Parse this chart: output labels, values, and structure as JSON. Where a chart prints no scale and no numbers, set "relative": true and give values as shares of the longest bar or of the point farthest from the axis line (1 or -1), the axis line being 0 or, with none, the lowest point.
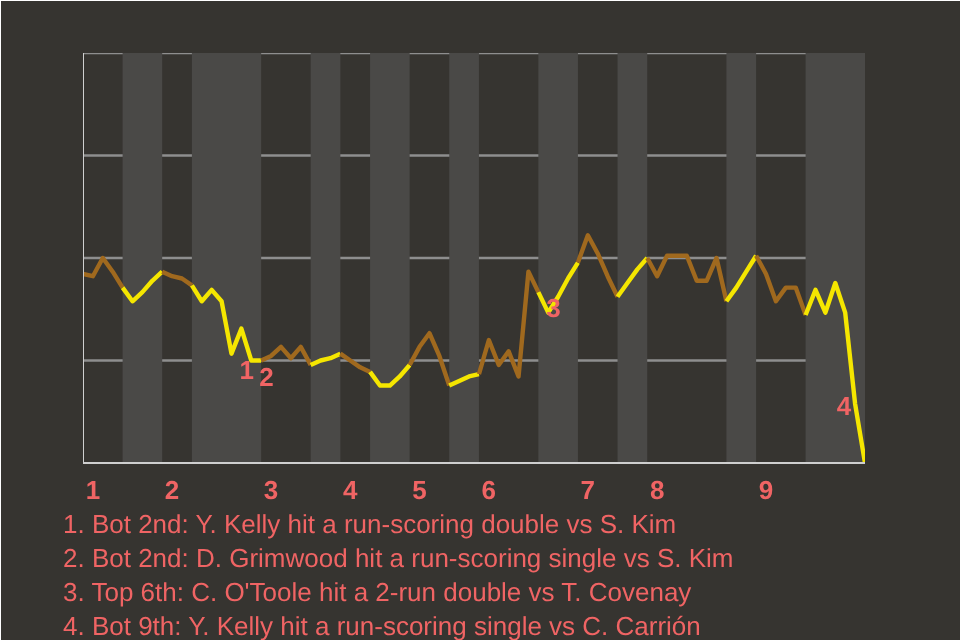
{
  "chart_data": {
    "type": "line",
    "relative": true,
    "categories": [
      null,
      "1",
      null,
      null,
      null,
      null,
      null,
      null,
      null,
      "2",
      null,
      null,
      null,
      null,
      null,
      null,
      null,
      null,
      null,
      "3",
      null,
      null,
      null,
      null,
      null,
      null,
      null,
      "4",
      null,
      null,
      null,
      null,
      null,
      null,
      "5",
      null,
      null,
      null,
      null,
      null,
      null,
      "6",
      null,
      null,
      null,
      null,
      null,
      null,
      null,
      null,
      null,
      "7",
      null,
      null,
      null,
      null,
      null,
      null,
      "8",
      null,
      null,
      null,
      null,
      null,
      null,
      null,
      null,
      null,
      null,
      "9",
      null,
      null,
      null,
      null,
      null,
      null,
      null,
      null,
      null,
      null
    ],
    "series": [
      {
        "color": "#a0691e",
        "values": [
          0.83,
          0.82,
          0.9,
          0.84,
          0.77,
          null,
          null,
          null,
          null,
          null,
          null,
          null,
          null,
          null,
          null,
          null,
          null,
          null,
          null,
          null,
          null,
          null,
          null,
          null,
          null,
          null,
          null,
          null,
          null,
          null,
          null,
          null,
          null,
          null,
          null,
          null,
          null,
          null,
          null,
          null,
          null,
          null,
          null,
          null,
          null,
          null,
          null,
          null,
          null,
          null,
          null,
          null,
          null,
          null,
          null,
          null,
          null,
          null,
          null,
          null,
          null,
          null,
          null,
          null,
          null,
          null,
          null,
          null,
          null,
          null,
          null,
          null,
          null,
          null,
          null,
          null,
          null,
          null,
          null,
          null
        ]
      },
      {
        "color": "#f5e600",
        "values": [
          null,
          null,
          null,
          null,
          0.77,
          0.71,
          0.75,
          0.8,
          0.84,
          null,
          null,
          null,
          null,
          null,
          null,
          null,
          null,
          null,
          null,
          null,
          null,
          null,
          null,
          null,
          null,
          null,
          null,
          null,
          null,
          null,
          null,
          null,
          null,
          null,
          null,
          null,
          null,
          null,
          null,
          null,
          null,
          null,
          null,
          null,
          null,
          null,
          null,
          null,
          null,
          null,
          null,
          null,
          null,
          null,
          null,
          null,
          null,
          null,
          null,
          null,
          null,
          null,
          null,
          null,
          null,
          null,
          null,
          null,
          null,
          null,
          null,
          null,
          null,
          null,
          null,
          null,
          null,
          null,
          null,
          null
        ]
      },
      {
        "color": "#a0691e",
        "values": [
          null,
          null,
          null,
          null,
          null,
          null,
          null,
          null,
          0.84,
          0.82,
          0.81,
          0.78,
          null,
          null,
          null,
          null,
          null,
          null,
          null,
          null,
          null,
          null,
          null,
          null,
          null,
          null,
          null,
          null,
          null,
          null,
          null,
          null,
          null,
          null,
          null,
          null,
          null,
          null,
          null,
          null,
          null,
          null,
          null,
          null,
          null,
          null,
          null,
          null,
          null,
          null,
          null,
          null,
          null,
          null,
          null,
          null,
          null,
          null,
          null,
          null,
          null,
          null,
          null,
          null,
          null,
          null,
          null,
          null,
          null,
          null,
          null,
          null,
          null,
          null,
          null,
          null,
          null,
          null,
          null,
          null
        ]
      },
      {
        "color": "#f5e600",
        "values": [
          null,
          null,
          null,
          null,
          null,
          null,
          null,
          null,
          null,
          null,
          null,
          0.78,
          0.71,
          0.76,
          0.71,
          0.48,
          0.59,
          0.45,
          0.45,
          null,
          null,
          null,
          null,
          null,
          null,
          null,
          null,
          null,
          null,
          null,
          null,
          null,
          null,
          null,
          null,
          null,
          null,
          null,
          null,
          null,
          null,
          null,
          null,
          null,
          null,
          null,
          null,
          null,
          null,
          null,
          null,
          null,
          null,
          null,
          null,
          null,
          null,
          null,
          null,
          null,
          null,
          null,
          null,
          null,
          null,
          null,
          null,
          null,
          null,
          null,
          null,
          null,
          null,
          null,
          null,
          null,
          null,
          null,
          null,
          null
        ]
      },
      {
        "color": "#a0691e",
        "values": [
          null,
          null,
          null,
          null,
          null,
          null,
          null,
          null,
          null,
          null,
          null,
          null,
          null,
          null,
          null,
          null,
          null,
          null,
          0.45,
          0.47,
          0.51,
          0.46,
          0.51,
          0.43,
          null,
          null,
          null,
          null,
          null,
          null,
          null,
          null,
          null,
          null,
          null,
          null,
          null,
          null,
          null,
          null,
          null,
          null,
          null,
          null,
          null,
          null,
          null,
          null,
          null,
          null,
          null,
          null,
          null,
          null,
          null,
          null,
          null,
          null,
          null,
          null,
          null,
          null,
          null,
          null,
          null,
          null,
          null,
          null,
          null,
          null,
          null,
          null,
          null,
          null,
          null,
          null,
          null,
          null,
          null,
          null
        ]
      },
      {
        "color": "#f5e600",
        "values": [
          null,
          null,
          null,
          null,
          null,
          null,
          null,
          null,
          null,
          null,
          null,
          null,
          null,
          null,
          null,
          null,
          null,
          null,
          null,
          null,
          null,
          null,
          null,
          0.43,
          0.45,
          0.46,
          0.48,
          null,
          null,
          null,
          null,
          null,
          null,
          null,
          null,
          null,
          null,
          null,
          null,
          null,
          null,
          null,
          null,
          null,
          null,
          null,
          null,
          null,
          null,
          null,
          null,
          null,
          null,
          null,
          null,
          null,
          null,
          null,
          null,
          null,
          null,
          null,
          null,
          null,
          null,
          null,
          null,
          null,
          null,
          null,
          null,
          null,
          null,
          null,
          null,
          null,
          null,
          null,
          null,
          null
        ]
      },
      {
        "color": "#a0691e",
        "values": [
          null,
          null,
          null,
          null,
          null,
          null,
          null,
          null,
          null,
          null,
          null,
          null,
          null,
          null,
          null,
          null,
          null,
          null,
          null,
          null,
          null,
          null,
          null,
          null,
          null,
          null,
          0.48,
          0.45,
          0.42,
          0.4,
          null,
          null,
          null,
          null,
          null,
          null,
          null,
          null,
          null,
          null,
          null,
          null,
          null,
          null,
          null,
          null,
          null,
          null,
          null,
          null,
          null,
          null,
          null,
          null,
          null,
          null,
          null,
          null,
          null,
          null,
          null,
          null,
          null,
          null,
          null,
          null,
          null,
          null,
          null,
          null,
          null,
          null,
          null,
          null,
          null,
          null,
          null,
          null,
          null,
          null
        ]
      },
      {
        "color": "#f5e600",
        "values": [
          null,
          null,
          null,
          null,
          null,
          null,
          null,
          null,
          null,
          null,
          null,
          null,
          null,
          null,
          null,
          null,
          null,
          null,
          null,
          null,
          null,
          null,
          null,
          null,
          null,
          null,
          null,
          null,
          null,
          0.4,
          0.34,
          0.34,
          0.38,
          0.43,
          null,
          null,
          null,
          null,
          null,
          null,
          null,
          null,
          null,
          null,
          null,
          null,
          null,
          null,
          null,
          null,
          null,
          null,
          null,
          null,
          null,
          null,
          null,
          null,
          null,
          null,
          null,
          null,
          null,
          null,
          null,
          null,
          null,
          null,
          null,
          null,
          null,
          null,
          null,
          null,
          null,
          null,
          null,
          null,
          null,
          null
        ]
      },
      {
        "color": "#a0691e",
        "values": [
          null,
          null,
          null,
          null,
          null,
          null,
          null,
          null,
          null,
          null,
          null,
          null,
          null,
          null,
          null,
          null,
          null,
          null,
          null,
          null,
          null,
          null,
          null,
          null,
          null,
          null,
          null,
          null,
          null,
          null,
          null,
          null,
          null,
          0.43,
          0.51,
          0.57,
          0.47,
          0.34,
          null,
          null,
          null,
          null,
          null,
          null,
          null,
          null,
          null,
          null,
          null,
          null,
          null,
          null,
          null,
          null,
          null,
          null,
          null,
          null,
          null,
          null,
          null,
          null,
          null,
          null,
          null,
          null,
          null,
          null,
          null,
          null,
          null,
          null,
          null,
          null,
          null,
          null,
          null,
          null,
          null,
          null
        ]
      },
      {
        "color": "#f5e600",
        "values": [
          null,
          null,
          null,
          null,
          null,
          null,
          null,
          null,
          null,
          null,
          null,
          null,
          null,
          null,
          null,
          null,
          null,
          null,
          null,
          null,
          null,
          null,
          null,
          null,
          null,
          null,
          null,
          null,
          null,
          null,
          null,
          null,
          null,
          null,
          null,
          null,
          null,
          0.34,
          0.36,
          0.38,
          0.39,
          null,
          null,
          null,
          null,
          null,
          null,
          null,
          null,
          null,
          null,
          null,
          null,
          null,
          null,
          null,
          null,
          null,
          null,
          null,
          null,
          null,
          null,
          null,
          null,
          null,
          null,
          null,
          null,
          null,
          null,
          null,
          null,
          null,
          null,
          null,
          null,
          null,
          null,
          null
        ]
      },
      {
        "color": "#a0691e",
        "values": [
          null,
          null,
          null,
          null,
          null,
          null,
          null,
          null,
          null,
          null,
          null,
          null,
          null,
          null,
          null,
          null,
          null,
          null,
          null,
          null,
          null,
          null,
          null,
          null,
          null,
          null,
          null,
          null,
          null,
          null,
          null,
          null,
          null,
          null,
          null,
          null,
          null,
          null,
          null,
          null,
          0.39,
          0.54,
          0.43,
          0.49,
          0.38,
          0.84,
          0.75,
          null,
          null,
          null,
          null,
          null,
          null,
          null,
          null,
          null,
          null,
          null,
          null,
          null,
          null,
          null,
          null,
          null,
          null,
          null,
          null,
          null,
          null,
          null,
          null,
          null,
          null,
          null,
          null,
          null,
          null,
          null,
          null,
          null
        ]
      },
      {
        "color": "#f5e600",
        "values": [
          null,
          null,
          null,
          null,
          null,
          null,
          null,
          null,
          null,
          null,
          null,
          null,
          null,
          null,
          null,
          null,
          null,
          null,
          null,
          null,
          null,
          null,
          null,
          null,
          null,
          null,
          null,
          null,
          null,
          null,
          null,
          null,
          null,
          null,
          null,
          null,
          null,
          null,
          null,
          null,
          null,
          null,
          null,
          null,
          null,
          null,
          0.75,
          0.66,
          0.73,
          0.81,
          0.88,
          null,
          null,
          null,
          null,
          null,
          null,
          null,
          null,
          null,
          null,
          null,
          null,
          null,
          null,
          null,
          null,
          null,
          null,
          null,
          null,
          null,
          null,
          null,
          null,
          null,
          null,
          null,
          null,
          null
        ]
      },
      {
        "color": "#a0691e",
        "values": [
          null,
          null,
          null,
          null,
          null,
          null,
          null,
          null,
          null,
          null,
          null,
          null,
          null,
          null,
          null,
          null,
          null,
          null,
          null,
          null,
          null,
          null,
          null,
          null,
          null,
          null,
          null,
          null,
          null,
          null,
          null,
          null,
          null,
          null,
          null,
          null,
          null,
          null,
          null,
          null,
          null,
          null,
          null,
          null,
          null,
          null,
          null,
          null,
          null,
          null,
          0.88,
          1.0,
          0.92,
          0.82,
          0.73,
          null,
          null,
          null,
          null,
          null,
          null,
          null,
          null,
          null,
          null,
          null,
          null,
          null,
          null,
          null,
          null,
          null,
          null,
          null,
          null,
          null,
          null,
          null,
          null,
          null
        ]
      },
      {
        "color": "#f5e600",
        "values": [
          null,
          null,
          null,
          null,
          null,
          null,
          null,
          null,
          null,
          null,
          null,
          null,
          null,
          null,
          null,
          null,
          null,
          null,
          null,
          null,
          null,
          null,
          null,
          null,
          null,
          null,
          null,
          null,
          null,
          null,
          null,
          null,
          null,
          null,
          null,
          null,
          null,
          null,
          null,
          null,
          null,
          null,
          null,
          null,
          null,
          null,
          null,
          null,
          null,
          null,
          null,
          null,
          null,
          null,
          0.73,
          0.79,
          0.85,
          0.9,
          null,
          null,
          null,
          null,
          null,
          null,
          null,
          null,
          null,
          null,
          null,
          null,
          null,
          null,
          null,
          null,
          null,
          null,
          null,
          null,
          null,
          null
        ]
      },
      {
        "color": "#a0691e",
        "values": [
          null,
          null,
          null,
          null,
          null,
          null,
          null,
          null,
          null,
          null,
          null,
          null,
          null,
          null,
          null,
          null,
          null,
          null,
          null,
          null,
          null,
          null,
          null,
          null,
          null,
          null,
          null,
          null,
          null,
          null,
          null,
          null,
          null,
          null,
          null,
          null,
          null,
          null,
          null,
          null,
          null,
          null,
          null,
          null,
          null,
          null,
          null,
          null,
          null,
          null,
          null,
          null,
          null,
          null,
          null,
          null,
          null,
          0.9,
          0.82,
          0.91,
          0.91,
          0.91,
          0.8,
          0.8,
          0.9,
          0.71,
          null,
          null,
          null,
          null,
          null,
          null,
          null,
          null,
          null,
          null,
          null,
          null,
          null,
          null
        ]
      },
      {
        "color": "#f5e600",
        "values": [
          null,
          null,
          null,
          null,
          null,
          null,
          null,
          null,
          null,
          null,
          null,
          null,
          null,
          null,
          null,
          null,
          null,
          null,
          null,
          null,
          null,
          null,
          null,
          null,
          null,
          null,
          null,
          null,
          null,
          null,
          null,
          null,
          null,
          null,
          null,
          null,
          null,
          null,
          null,
          null,
          null,
          null,
          null,
          null,
          null,
          null,
          null,
          null,
          null,
          null,
          null,
          null,
          null,
          null,
          null,
          null,
          null,
          null,
          null,
          null,
          null,
          null,
          null,
          null,
          null,
          0.71,
          0.77,
          0.84,
          0.91,
          null,
          null,
          null,
          null,
          null,
          null,
          null,
          null,
          null,
          null,
          null
        ]
      },
      {
        "color": "#a0691e",
        "values": [
          null,
          null,
          null,
          null,
          null,
          null,
          null,
          null,
          null,
          null,
          null,
          null,
          null,
          null,
          null,
          null,
          null,
          null,
          null,
          null,
          null,
          null,
          null,
          null,
          null,
          null,
          null,
          null,
          null,
          null,
          null,
          null,
          null,
          null,
          null,
          null,
          null,
          null,
          null,
          null,
          null,
          null,
          null,
          null,
          null,
          null,
          null,
          null,
          null,
          null,
          null,
          null,
          null,
          null,
          null,
          null,
          null,
          null,
          null,
          null,
          null,
          null,
          null,
          null,
          null,
          null,
          null,
          null,
          0.91,
          0.83,
          0.71,
          0.77,
          0.77,
          0.65,
          null,
          null,
          null,
          null,
          null,
          null
        ]
      },
      {
        "color": "#f5e600",
        "values": [
          null,
          null,
          null,
          null,
          null,
          null,
          null,
          null,
          null,
          null,
          null,
          null,
          null,
          null,
          null,
          null,
          null,
          null,
          null,
          null,
          null,
          null,
          null,
          null,
          null,
          null,
          null,
          null,
          null,
          null,
          null,
          null,
          null,
          null,
          null,
          null,
          null,
          null,
          null,
          null,
          null,
          null,
          null,
          null,
          null,
          null,
          null,
          null,
          null,
          null,
          null,
          null,
          null,
          null,
          null,
          null,
          null,
          null,
          null,
          null,
          null,
          null,
          null,
          null,
          null,
          null,
          null,
          null,
          null,
          null,
          null,
          null,
          null,
          0.65,
          0.76,
          0.66,
          0.79,
          0.66,
          0.26,
          0
        ]
      }
    ],
    "ref_lines": [
      {
        "axis": "y",
        "value": 0.45,
        "color": "#8e8e8e"
      },
      {
        "axis": "y",
        "value": 0.9,
        "color": "#8e8e8e"
      },
      {
        "axis": "y",
        "value": 1.35,
        "color": "#8e8e8e"
      },
      {
        "axis": "y",
        "value": 1.8,
        "color": "#8e8e8e"
      }
    ],
    "annotations": [
      {
        "text": "1",
        "y": 0.48
      },
      {
        "text": "2",
        "y": 0.45
      },
      {
        "text": "3",
        "y": 0.75
      },
      {
        "text": "4",
        "y": 0.26
      },
      "1. Bot 2nd: Y. Kelly hit a run-scoring double vs S. Kim",
      "2. Bot 2nd: D. Grimwood hit a run-scoring single vs S. Kim",
      "3. Top 6th: C. O'Toole hit a 2-run double vs T. Covenay",
      "4. Bot 9th: Y. Kelly hit a run-scoring single vs C. Carrión"
    ]
  }
}
